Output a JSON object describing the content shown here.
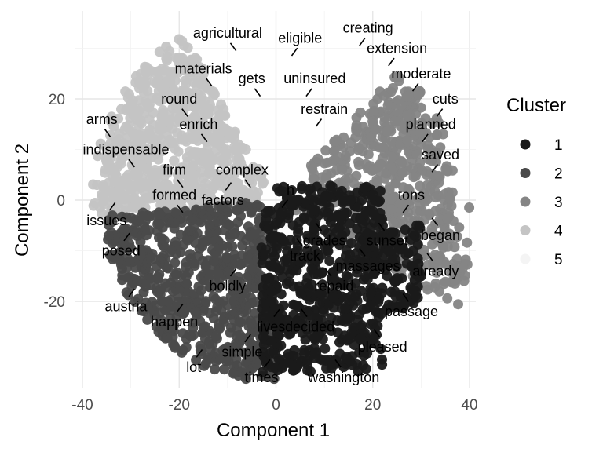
{
  "chart_data": {
    "type": "scatter",
    "title": "",
    "xlabel": "Component 1",
    "ylabel": "Component 2",
    "xlim": [
      -40,
      40
    ],
    "ylim": [
      -36,
      36
    ],
    "x_ticks": [
      -40,
      -20,
      0,
      20,
      40
    ],
    "y_ticks": [
      -20,
      0,
      20
    ],
    "grid": true,
    "legend_title": "Cluster",
    "legend_position": "right",
    "clusters": [
      {
        "name": "1",
        "color": "#1a1a1a"
      },
      {
        "name": "2",
        "color": "#4a4a4a"
      },
      {
        "name": "3",
        "color": "#858585"
      },
      {
        "name": "4",
        "color": "#c4c4c4"
      },
      {
        "name": "5",
        "color": "#f4f4f4"
      }
    ],
    "labels": [
      {
        "text": "agricultural",
        "x": -10,
        "y": 33,
        "cluster": 5
      },
      {
        "text": "eligible",
        "x": 5,
        "y": 32,
        "cluster": 5
      },
      {
        "text": "creating",
        "x": 19,
        "y": 34,
        "cluster": 5
      },
      {
        "text": "extension",
        "x": 25,
        "y": 30,
        "cluster": 5
      },
      {
        "text": "materials",
        "x": -15,
        "y": 26,
        "cluster": 4
      },
      {
        "text": "gets",
        "x": -5,
        "y": 24,
        "cluster": 5
      },
      {
        "text": "uninsured",
        "x": 8,
        "y": 24,
        "cluster": 5
      },
      {
        "text": "moderate",
        "x": 30,
        "y": 25,
        "cluster": 3
      },
      {
        "text": "round",
        "x": -20,
        "y": 20,
        "cluster": 4
      },
      {
        "text": "restrain",
        "x": 10,
        "y": 18,
        "cluster": 5
      },
      {
        "text": "cuts",
        "x": 35,
        "y": 20,
        "cluster": 3
      },
      {
        "text": "arms",
        "x": -36,
        "y": 16,
        "cluster": 4
      },
      {
        "text": "enrich",
        "x": -16,
        "y": 15,
        "cluster": 4
      },
      {
        "text": "planned",
        "x": 32,
        "y": 15,
        "cluster": 3
      },
      {
        "text": "indispensable",
        "x": -31,
        "y": 10,
        "cluster": 4
      },
      {
        "text": "saved",
        "x": 34,
        "y": 9,
        "cluster": 3
      },
      {
        "text": "firm",
        "x": -21,
        "y": 6,
        "cluster": 4
      },
      {
        "text": "complex",
        "x": -7,
        "y": 6,
        "cluster": 4
      },
      {
        "text": "formed",
        "x": -21,
        "y": 1,
        "cluster": 4
      },
      {
        "text": "h",
        "x": 3,
        "y": 2,
        "cluster": 1
      },
      {
        "text": "factors",
        "x": -11,
        "y": 0,
        "cluster": 4
      },
      {
        "text": "tons",
        "x": 28,
        "y": 1,
        "cluster": 3
      },
      {
        "text": "issues",
        "x": -35,
        "y": -4,
        "cluster": 4
      },
      {
        "text": "began",
        "x": 34,
        "y": -7,
        "cluster": 3
      },
      {
        "text": "grades",
        "x": 10,
        "y": -8,
        "cluster": 1
      },
      {
        "text": "sunset",
        "x": 23,
        "y": -8,
        "cluster": 1
      },
      {
        "text": "posed",
        "x": -32,
        "y": -10,
        "cluster": 2
      },
      {
        "text": "track",
        "x": 6,
        "y": -11,
        "cluster": 1
      },
      {
        "text": "massages",
        "x": 19,
        "y": -13,
        "cluster": 1
      },
      {
        "text": "already",
        "x": 33,
        "y": -14,
        "cluster": 1
      },
      {
        "text": "boldly",
        "x": -10,
        "y": -17,
        "cluster": 2
      },
      {
        "text": "repaid",
        "x": 12,
        "y": -17,
        "cluster": 1
      },
      {
        "text": "austria",
        "x": -31,
        "y": -21,
        "cluster": 2
      },
      {
        "text": "passage",
        "x": 28,
        "y": -22,
        "cluster": 1
      },
      {
        "text": "happen",
        "x": -21,
        "y": -24,
        "cluster": 2
      },
      {
        "text": "lives",
        "x": -1,
        "y": -25,
        "cluster": 2
      },
      {
        "text": "decided",
        "x": 7,
        "y": -25,
        "cluster": 1
      },
      {
        "text": "simple",
        "x": -7,
        "y": -30,
        "cluster": 2
      },
      {
        "text": "pleased",
        "x": 22,
        "y": -29,
        "cluster": 1
      },
      {
        "text": "lot",
        "x": -17,
        "y": -33,
        "cluster": 2
      },
      {
        "text": "times",
        "x": -3,
        "y": -35,
        "cluster": 2
      },
      {
        "text": "washington",
        "x": 14,
        "y": -35,
        "cluster": 1
      }
    ]
  }
}
